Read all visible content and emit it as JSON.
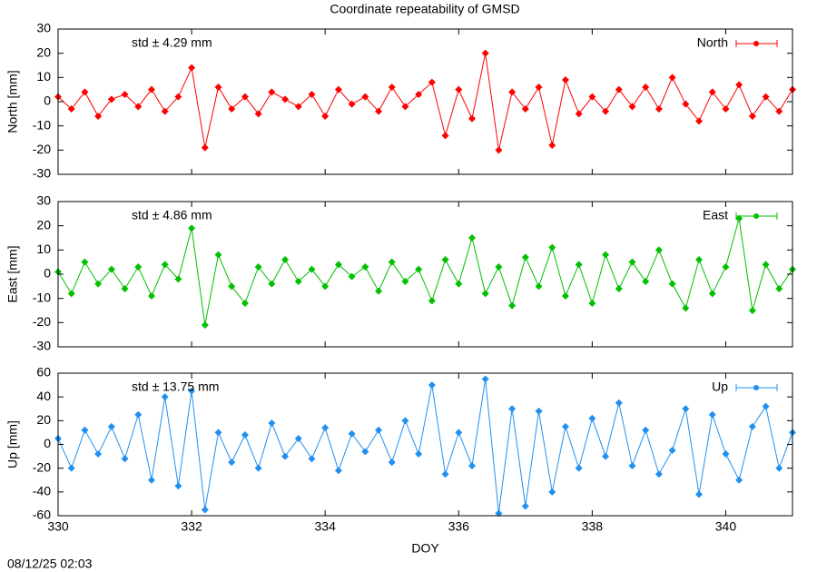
{
  "title": "Coordinate repeatability of GMSD",
  "timestamp": "08/12/25 02:03",
  "chart_data": [
    {
      "type": "line",
      "ylabel": "North [mm]",
      "annotation": "std ± 4.29 mm",
      "xlim": [
        330,
        341
      ],
      "xticks": [
        330,
        332,
        334,
        336,
        338,
        340
      ],
      "ylim": [
        -30,
        30
      ],
      "yticks": [
        -30,
        -20,
        -10,
        0,
        10,
        20,
        30
      ],
      "x": [
        330,
        330.2,
        330.4,
        330.6,
        330.8,
        331,
        331.2,
        331.4,
        331.6,
        331.8,
        332,
        332.2,
        332.4,
        332.6,
        332.8,
        333,
        333.2,
        333.4,
        333.6,
        333.8,
        334,
        334.2,
        334.4,
        334.6,
        334.8,
        335,
        335.2,
        335.4,
        335.6,
        335.8,
        336,
        336.2,
        336.4,
        336.6,
        336.8,
        337,
        337.2,
        337.4,
        337.6,
        337.8,
        338,
        338.2,
        338.4,
        338.6,
        338.8,
        339,
        339.2,
        339.4,
        339.6,
        339.8,
        340,
        340.2,
        340.4,
        340.6,
        340.8,
        341
      ],
      "series": [
        {
          "name": "North",
          "color": "#ff0000",
          "values": [
            2,
            -3,
            4,
            -6,
            1,
            3,
            -2,
            5,
            -4,
            2,
            14,
            -19,
            6,
            -3,
            2,
            -5,
            4,
            1,
            -2,
            3,
            -6,
            5,
            -1,
            2,
            -4,
            6,
            -2,
            3,
            8,
            -14,
            5,
            -7,
            20,
            -20,
            4,
            -3,
            6,
            -18,
            9,
            -5,
            2,
            -4,
            5,
            -2,
            6,
            -3,
            10,
            -1,
            -8,
            4,
            -3,
            7,
            -6,
            2,
            -4,
            5
          ]
        }
      ]
    },
    {
      "type": "line",
      "ylabel": "East [mm]",
      "annotation": "std ± 4.86 mm",
      "xlim": [
        330,
        341
      ],
      "xticks": [
        330,
        332,
        334,
        336,
        338,
        340
      ],
      "ylim": [
        -30,
        30
      ],
      "yticks": [
        -30,
        -20,
        -10,
        0,
        10,
        20,
        30
      ],
      "x": [
        330,
        330.2,
        330.4,
        330.6,
        330.8,
        331,
        331.2,
        331.4,
        331.6,
        331.8,
        332,
        332.2,
        332.4,
        332.6,
        332.8,
        333,
        333.2,
        333.4,
        333.6,
        333.8,
        334,
        334.2,
        334.4,
        334.6,
        334.8,
        335,
        335.2,
        335.4,
        335.6,
        335.8,
        336,
        336.2,
        336.4,
        336.6,
        336.8,
        337,
        337.2,
        337.4,
        337.6,
        337.8,
        338,
        338.2,
        338.4,
        338.6,
        338.8,
        339,
        339.2,
        339.4,
        339.6,
        339.8,
        340,
        340.2,
        340.4,
        340.6,
        340.8,
        341
      ],
      "series": [
        {
          "name": "East",
          "color": "#00c000",
          "values": [
            1,
            -8,
            5,
            -4,
            2,
            -6,
            3,
            -9,
            4,
            -2,
            19,
            -21,
            8,
            -5,
            -12,
            3,
            -4,
            6,
            -3,
            2,
            -5,
            4,
            -1,
            3,
            -7,
            5,
            -3,
            2,
            -11,
            6,
            -4,
            15,
            -8,
            3,
            -13,
            7,
            -5,
            11,
            -9,
            4,
            -12,
            8,
            -6,
            5,
            -3,
            10,
            -4,
            -14,
            6,
            -8,
            3,
            23,
            -15,
            4,
            -6,
            2
          ]
        }
      ]
    },
    {
      "type": "line",
      "ylabel": "Up [mm]",
      "xlabel": "DOY",
      "annotation": "std ± 13.75 mm",
      "xlim": [
        330,
        341
      ],
      "xticks": [
        330,
        332,
        334,
        336,
        338,
        340
      ],
      "ylim": [
        -60,
        60
      ],
      "yticks": [
        -60,
        -40,
        -20,
        0,
        20,
        40,
        60
      ],
      "x": [
        330,
        330.2,
        330.4,
        330.6,
        330.8,
        331,
        331.2,
        331.4,
        331.6,
        331.8,
        332,
        332.2,
        332.4,
        332.6,
        332.8,
        333,
        333.2,
        333.4,
        333.6,
        333.8,
        334,
        334.2,
        334.4,
        334.6,
        334.8,
        335,
        335.2,
        335.4,
        335.6,
        335.8,
        336,
        336.2,
        336.4,
        336.6,
        336.8,
        337,
        337.2,
        337.4,
        337.6,
        337.8,
        338,
        338.2,
        338.4,
        338.6,
        338.8,
        339,
        339.2,
        339.4,
        339.6,
        339.8,
        340,
        340.2,
        340.4,
        340.6,
        340.8,
        341
      ],
      "series": [
        {
          "name": "Up",
          "color": "#2090f0",
          "values": [
            5,
            -20,
            12,
            -8,
            15,
            -12,
            25,
            -30,
            40,
            -35,
            45,
            -55,
            10,
            -15,
            8,
            -20,
            18,
            -10,
            5,
            -12,
            14,
            -22,
            9,
            -6,
            12,
            -15,
            20,
            -8,
            50,
            -25,
            10,
            -18,
            55,
            -58,
            30,
            -52,
            28,
            -40,
            15,
            -20,
            22,
            -10,
            35,
            -18,
            12,
            -25,
            -5,
            30,
            -42,
            25,
            -8,
            -30,
            15,
            32,
            -20,
            10
          ]
        }
      ]
    }
  ]
}
